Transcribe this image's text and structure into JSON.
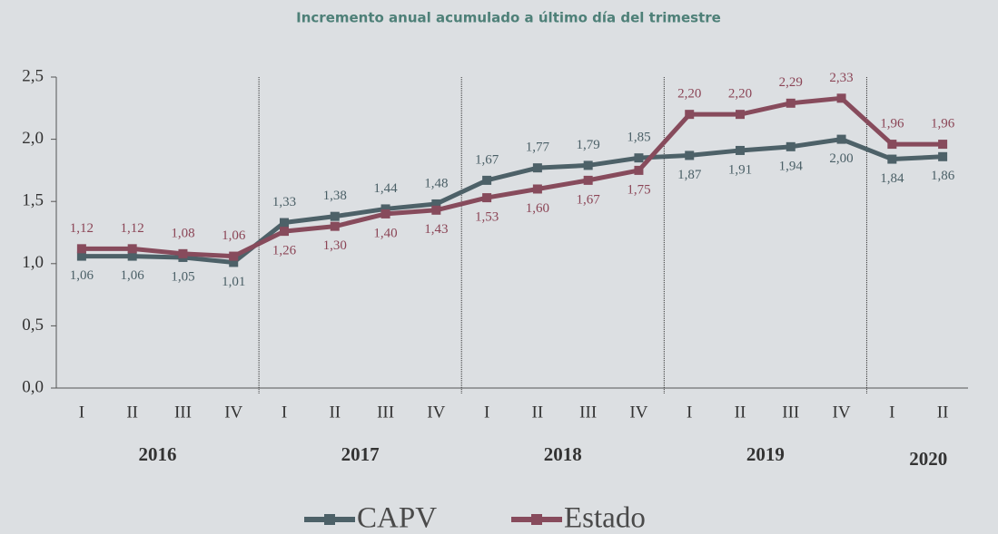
{
  "chart_data": {
    "type": "line",
    "title": "Incremento anual acumulado a último día del  trimestre",
    "categories": [
      "I",
      "II",
      "III",
      "IV",
      "I",
      "II",
      "III",
      "IV",
      "I",
      "II",
      "III",
      "IV",
      "I",
      "II",
      "III",
      "IV",
      "I",
      "II"
    ],
    "groups": [
      {
        "name": "2016",
        "size": 4
      },
      {
        "name": "2017",
        "size": 4
      },
      {
        "name": "2018",
        "size": 4
      },
      {
        "name": "2019",
        "size": 4
      },
      {
        "name": "2020",
        "size": 2
      }
    ],
    "series": [
      {
        "name": "CAPV",
        "color": "#4d6168",
        "label_color": "#4a5f66",
        "values": [
          1.06,
          1.06,
          1.05,
          1.01,
          1.33,
          1.38,
          1.44,
          1.48,
          1.67,
          1.77,
          1.79,
          1.85,
          1.87,
          1.91,
          1.94,
          2.0,
          1.84,
          1.86
        ],
        "value_labels": [
          "1,06",
          "1,06",
          "1,05",
          "1,01",
          "1,33",
          "1,38",
          "1,44",
          "1,48",
          "1,67",
          "1,77",
          "1,79",
          "1,85",
          "1,87",
          "1,91",
          "1,94",
          "2,00",
          "1,84",
          "1,86"
        ]
      },
      {
        "name": "Estado",
        "color": "#874b5c",
        "label_color": "#8b4556",
        "values": [
          1.12,
          1.12,
          1.08,
          1.06,
          1.26,
          1.3,
          1.4,
          1.43,
          1.53,
          1.6,
          1.67,
          1.75,
          2.2,
          2.2,
          2.29,
          2.33,
          1.96,
          1.96
        ],
        "value_labels": [
          "1,12",
          "1,12",
          "1,08",
          "1,06",
          "1,26",
          "1,30",
          "1,40",
          "1,43",
          "1,53",
          "1,60",
          "1,67",
          "1,75",
          "2,20",
          "2,20",
          "2,29",
          "2,33",
          "1,96",
          "1,96"
        ]
      }
    ],
    "ylim": [
      0,
      2.5
    ],
    "yticks": [
      {
        "value": 0,
        "label": "0,0"
      },
      {
        "value": 0.5,
        "label": "0,5"
      },
      {
        "value": 1,
        "label": "1,0"
      },
      {
        "value": 1.5,
        "label": "1,5"
      },
      {
        "value": 2,
        "label": "2,0"
      },
      {
        "value": 2.5,
        "label": "2,5"
      }
    ],
    "legend": "bottom"
  }
}
